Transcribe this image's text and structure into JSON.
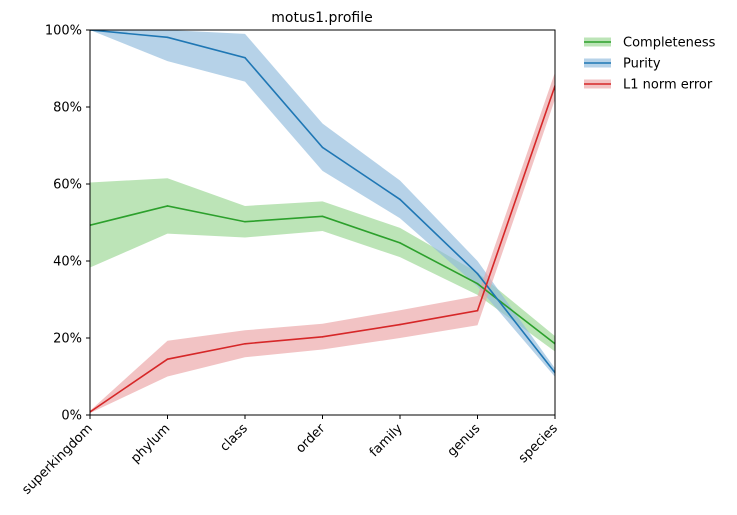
{
  "chart_data": {
    "type": "line",
    "title": "motus1.profile",
    "xlabel": "",
    "ylabel": "",
    "categories": [
      "superkingdom",
      "phylum",
      "class",
      "order",
      "family",
      "genus",
      "species"
    ],
    "ylim": [
      0,
      1
    ],
    "y_ticks": [
      0,
      0.2,
      0.4,
      0.6,
      0.8,
      1.0
    ],
    "y_tick_labels": [
      "0%",
      "20%",
      "40%",
      "60%",
      "80%",
      "100%"
    ],
    "grid": false,
    "legend_position": "outside-top-right",
    "series": [
      {
        "name": "Completeness",
        "color": "#2ca02c",
        "band_color": "#98d690",
        "values": [
          0.493,
          0.543,
          0.502,
          0.516,
          0.447,
          0.341,
          0.185
        ],
        "lower": [
          0.383,
          0.471,
          0.461,
          0.478,
          0.41,
          0.312,
          0.165
        ],
        "upper": [
          0.604,
          0.615,
          0.543,
          0.555,
          0.486,
          0.37,
          0.205
        ]
      },
      {
        "name": "Purity",
        "color": "#1f77b4",
        "band_color": "#8fbadc",
        "values": [
          1.0,
          0.981,
          0.928,
          0.695,
          0.56,
          0.367,
          0.11
        ],
        "lower": [
          1.0,
          0.919,
          0.866,
          0.634,
          0.511,
          0.334,
          0.099
        ],
        "upper": [
          1.0,
          1.0,
          0.99,
          0.757,
          0.609,
          0.4,
          0.121
        ]
      },
      {
        "name": "L1 norm error",
        "color": "#d62728",
        "band_color": "#eba3a4",
        "values": [
          0.008,
          0.145,
          0.185,
          0.203,
          0.235,
          0.271,
          0.855
        ],
        "lower": [
          0.005,
          0.1,
          0.15,
          0.17,
          0.2,
          0.233,
          0.82
        ],
        "upper": [
          0.011,
          0.193,
          0.22,
          0.237,
          0.272,
          0.309,
          0.89
        ]
      }
    ]
  }
}
